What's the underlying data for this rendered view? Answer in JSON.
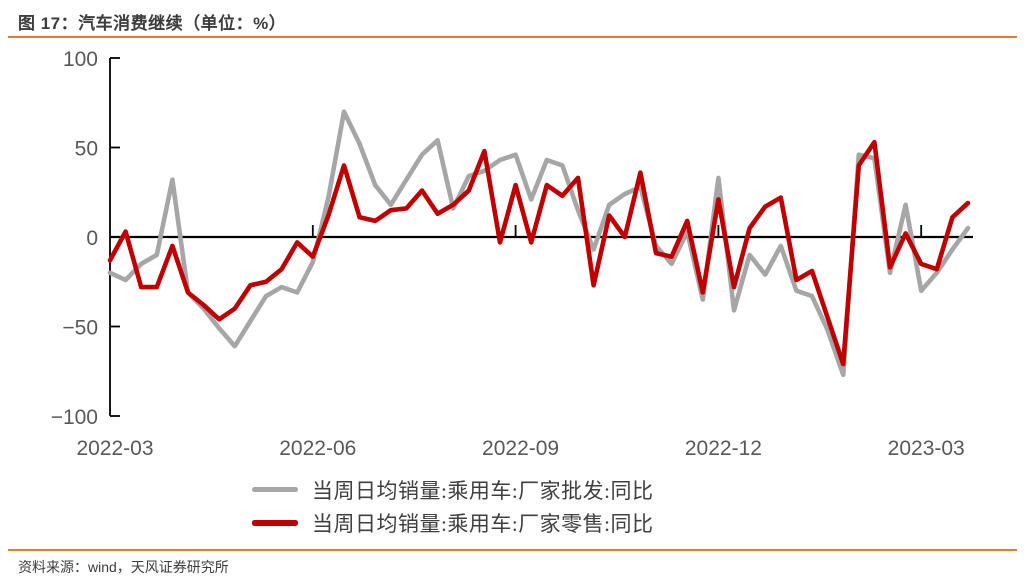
{
  "header": {
    "figure_title": "图 17：汽车消费继续（单位：%）"
  },
  "footer": {
    "source": "资料来源：wind，天风证券研究所"
  },
  "colors": {
    "accent_orange": "#e87c28",
    "axis_black": "#000000",
    "tick_label_gray": "#595959",
    "wholesale_gray": "#a6a6a6",
    "retail_red": "#c00000"
  },
  "chart_data": {
    "type": "line",
    "unit": "%",
    "ylim": [
      -100,
      100
    ],
    "grid": false,
    "legend_position": "bottom-center",
    "y_ticks": [
      100,
      50,
      0,
      -50,
      -100
    ],
    "y_tick_labels": [
      "100",
      "50",
      "0",
      "−50",
      "−100"
    ],
    "x_tick_labels": [
      "2022-03",
      "2022-06",
      "2022-09",
      "2022-12",
      "2023-03"
    ],
    "x_tick_indices": [
      0,
      13,
      26,
      39,
      52
    ],
    "n_points": 56,
    "series": [
      {
        "name": "当周日均销量:乘用车:厂家批发:同比",
        "color": "#a6a6a6",
        "values": [
          -20,
          -24,
          -15,
          -10,
          32,
          -31,
          -40,
          -51,
          -61,
          -47,
          -33,
          -28,
          -31,
          -14,
          22,
          70,
          52,
          29,
          18,
          32,
          46,
          54,
          16,
          34,
          37,
          43,
          46,
          21,
          43,
          40,
          15,
          -7,
          18,
          24,
          28,
          -5,
          -15,
          3,
          -35,
          33,
          -41,
          -10,
          -21,
          -5,
          -30,
          -33,
          -52,
          -77,
          46,
          44,
          -20,
          18,
          -30,
          -20,
          -7,
          5
        ]
      },
      {
        "name": "当周日均销量:乘用车:厂家零售:同比",
        "color": "#c00000",
        "values": [
          -13,
          3,
          -28,
          -28,
          -5,
          -31,
          -38,
          -46,
          -40,
          -27,
          -25,
          -18,
          -3,
          -11,
          12,
          40,
          11,
          9,
          15,
          16,
          26,
          13,
          18,
          26,
          48,
          -3,
          29,
          -3,
          29,
          23,
          33,
          -27,
          12,
          0,
          36,
          -9,
          -11,
          9,
          -31,
          21,
          -28,
          5,
          17,
          22,
          -24,
          -19,
          -45,
          -71,
          40,
          53,
          -17,
          2,
          -15,
          -18,
          11,
          19
        ]
      }
    ]
  }
}
